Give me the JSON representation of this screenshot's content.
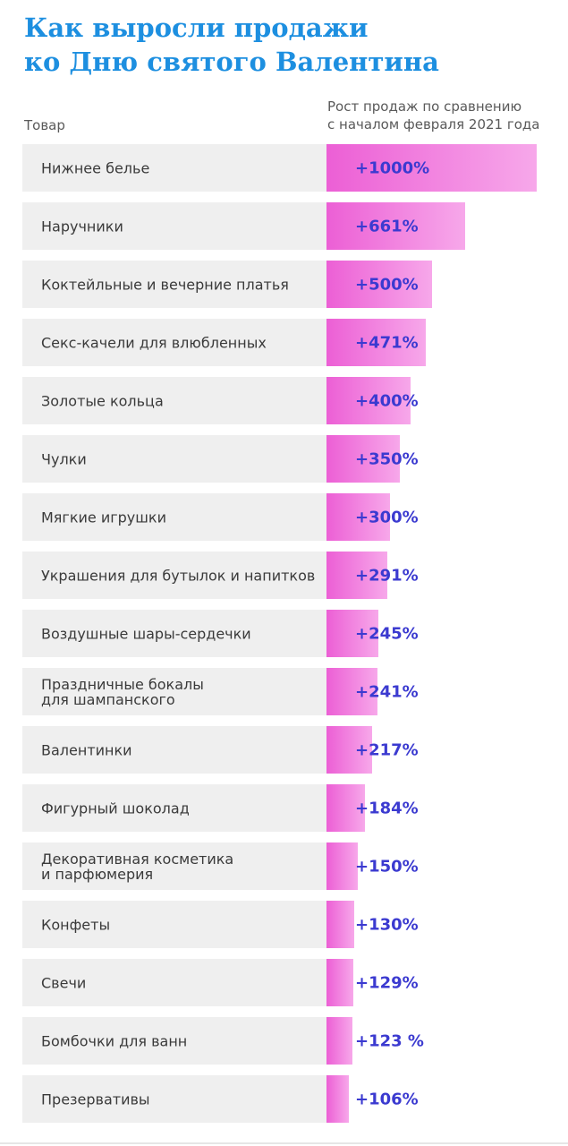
{
  "title": "Как выросли продажи\nко Дню святого Валентина",
  "header_left": "Товар",
  "header_right": "Рост продаж по сравнению\nс началом февраля 2021 года",
  "chart_data": {
    "type": "bar",
    "orientation": "horizontal",
    "xlabel": "Рост продаж по сравнению с началом февраля 2021 года",
    "ylabel": "Товар",
    "xlim": [
      0,
      1000
    ],
    "colors": {
      "bar": "#ec5fd5",
      "value_text": "#3b3ad0",
      "title": "#1d8fe0"
    },
    "categories": [
      "Нижнее белье",
      "Наручники",
      "Коктейльные и вечерние платья",
      "Секс-качели для влюбленных",
      "Золотые кольца",
      "Чулки",
      "Мягкие игрушки",
      "Украшения для бутылок и напитков",
      "Воздушные шары-сердечки",
      "Праздничные бокалы\nдля шампанского",
      "Валентинки",
      "Фигурный шоколад",
      "Декоративная косметика\nи парфюмерия",
      "Конфеты",
      "Свечи",
      "Бомбочки для ванн",
      "Презервативы"
    ],
    "values": [
      1000,
      661,
      500,
      471,
      400,
      350,
      300,
      291,
      245,
      241,
      217,
      184,
      150,
      130,
      129,
      123,
      106
    ],
    "value_labels": [
      "+1000%",
      "+661%",
      "+500%",
      "+471%",
      "+400%",
      "+350%",
      "+300%",
      "+291%",
      "+245%",
      "+241%",
      "+217%",
      "+184%",
      "+150%",
      "+130%",
      "+129%",
      "+123 %",
      "+106%"
    ]
  }
}
